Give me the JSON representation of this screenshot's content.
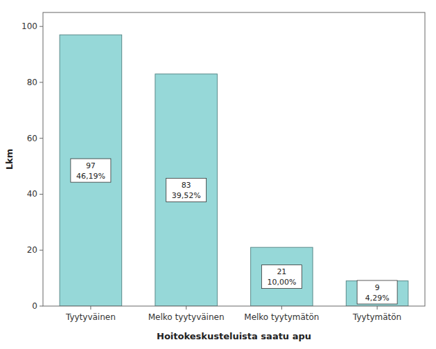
{
  "chart_data": {
    "type": "bar",
    "categories": [
      "Tyytyväinen",
      "Melko tyytyväinen",
      "Melko tyytymätön",
      "Tyytymätön"
    ],
    "values": [
      97,
      83,
      21,
      9
    ],
    "percentages": [
      "46,19%",
      "39,52%",
      "10,00%",
      "4,29%"
    ],
    "color": "#96D8D8",
    "x_label": "Hoitokeskusteluista saatu apu",
    "y_label": "Lkm",
    "ylim": [
      0,
      105
    ],
    "yticks": [
      0,
      20,
      40,
      60,
      80,
      100
    ],
    "grid": false,
    "data_labels": true
  }
}
